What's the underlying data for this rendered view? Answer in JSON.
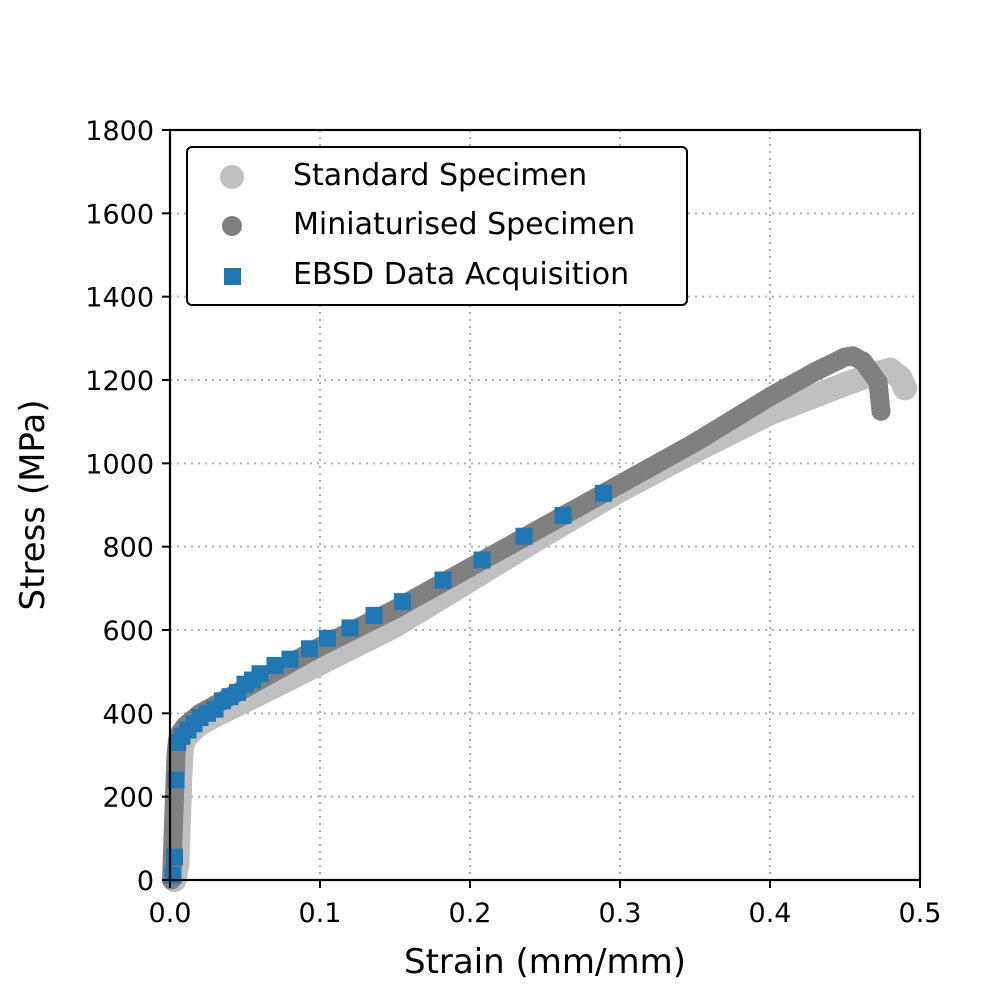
{
  "chart_data": {
    "type": "scatter",
    "xlabel": "Strain (mm/mm)",
    "ylabel": "Stress (MPa)",
    "xlim": [
      0.0,
      0.5
    ],
    "ylim": [
      0,
      1800
    ],
    "x_ticks": [
      "0.0",
      "0.1",
      "0.2",
      "0.3",
      "0.4",
      "0.5"
    ],
    "y_ticks": [
      "0",
      "200",
      "400",
      "600",
      "800",
      "1000",
      "1200",
      "1400",
      "1600",
      "1800"
    ],
    "grid": true,
    "legend_position": "top-left",
    "series": [
      {
        "name": "Standard Specimen",
        "color": "#c0c0c0",
        "marker": "circle",
        "x": [
          0.003,
          0.005,
          0.006,
          0.007,
          0.008,
          0.01,
          0.015,
          0.02,
          0.03,
          0.05,
          0.075,
          0.1,
          0.15,
          0.2,
          0.25,
          0.3,
          0.35,
          0.4,
          0.45,
          0.47,
          0.48,
          0.487,
          0.49
        ],
        "y": [
          0,
          40,
          150,
          260,
          320,
          340,
          360,
          375,
          395,
          430,
          475,
          520,
          610,
          720,
          830,
          935,
          1030,
          1120,
          1190,
          1215,
          1225,
          1205,
          1180
        ]
      },
      {
        "name": "Miniaturised Specimen",
        "color": "#808080",
        "marker": "circle",
        "x": [
          0.001,
          0.002,
          0.003,
          0.004,
          0.005,
          0.007,
          0.01,
          0.015,
          0.02,
          0.03,
          0.05,
          0.075,
          0.1,
          0.15,
          0.2,
          0.25,
          0.3,
          0.35,
          0.4,
          0.43,
          0.45,
          0.455,
          0.462,
          0.468,
          0.472,
          0.474
        ],
        "y": [
          0,
          100,
          200,
          300,
          335,
          355,
          370,
          385,
          400,
          420,
          460,
          510,
          560,
          650,
          750,
          850,
          950,
          1050,
          1160,
          1220,
          1255,
          1258,
          1245,
          1215,
          1195,
          1125
        ]
      },
      {
        "name": "EBSD Data Acquisition",
        "color": "#1f77b4",
        "marker": "square",
        "x": [
          0.002,
          0.003,
          0.004,
          0.005,
          0.008,
          0.012,
          0.016,
          0.02,
          0.025,
          0.03,
          0.035,
          0.04,
          0.045,
          0.05,
          0.055,
          0.06,
          0.07,
          0.08,
          0.093,
          0.105,
          0.12,
          0.136,
          0.155,
          0.182,
          0.208,
          0.236,
          0.262,
          0.289
        ],
        "y": [
          12,
          55,
          240,
          330,
          345,
          360,
          375,
          390,
          400,
          410,
          430,
          440,
          450,
          470,
          480,
          495,
          515,
          530,
          555,
          580,
          605,
          635,
          668,
          720,
          768,
          825,
          875,
          928
        ]
      }
    ]
  }
}
